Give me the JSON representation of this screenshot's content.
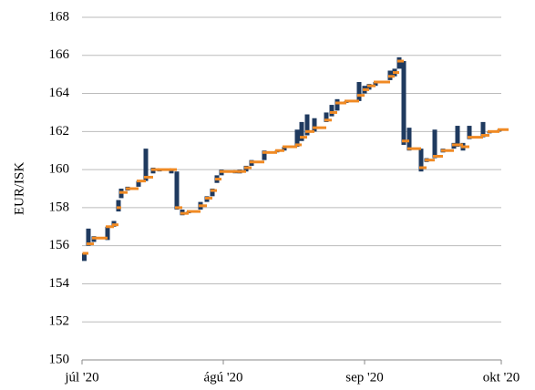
{
  "chart_data": {
    "type": "ohlc",
    "y_label": "EUR/ISK",
    "x": [
      0.5,
      1.4,
      2.6,
      5.6,
      7,
      8,
      8.6,
      10,
      12.4,
      14,
      15.6,
      17,
      19.6,
      20.8,
      22,
      23.4,
      26,
      27.4,
      28.6,
      29.6,
      30.6,
      33.6,
      34.6,
      36,
      37.2,
      40,
      42.8,
      44.4,
      47.2,
      48.2,
      49.4,
      51,
      53.6,
      54.8,
      56,
      58,
      60.8,
      62,
      63,
      64.4,
      67.6,
      68.6,
      69.6,
      70.6,
      71.8,
      74.4,
      75.6,
      77.4,
      79.2,
      81.6,
      82.4,
      83.6,
      85,
      88,
      89.4,
      91.6
    ],
    "high": [
      155.6,
      156.9,
      156.5,
      157.0,
      157.3,
      158.4,
      159.0,
      159.1,
      159.4,
      161.1,
      160.1,
      160.0,
      160.0,
      159.9,
      157.9,
      157.8,
      158.3,
      158.6,
      159.0,
      159.7,
      160.0,
      159.9,
      160.0,
      160.2,
      160.5,
      161.0,
      161.0,
      161.2,
      162.1,
      162.5,
      162.9,
      162.7,
      163.0,
      163.4,
      163.7,
      163.6,
      164.6,
      164.4,
      164.5,
      164.6,
      165.2,
      165.3,
      165.9,
      165.7,
      162.2,
      161.1,
      160.6,
      162.1,
      161.1,
      161.4,
      162.3,
      161.4,
      162.3,
      162.5,
      162.0,
      162.1
    ],
    "low": [
      155.2,
      156.0,
      156.2,
      156.3,
      157.0,
      157.8,
      158.5,
      158.9,
      159.1,
      159.4,
      159.8,
      160.0,
      159.8,
      157.9,
      157.6,
      157.8,
      157.9,
      158.3,
      158.6,
      159.3,
      159.7,
      159.9,
      159.8,
      159.9,
      160.2,
      160.5,
      161.0,
      161.0,
      161.2,
      161.5,
      161.8,
      162.0,
      162.5,
      162.8,
      163.1,
      163.6,
      163.6,
      164.0,
      164.2,
      164.4,
      164.7,
      164.9,
      165.3,
      161.3,
      161.0,
      159.9,
      160.4,
      160.6,
      160.9,
      161.1,
      161.2,
      161.0,
      161.6,
      161.7,
      162.0,
      162.1
    ],
    "close": [
      155.6,
      156.1,
      156.4,
      157.0,
      157.1,
      158.0,
      158.8,
      159.0,
      159.4,
      159.6,
      160.0,
      160.0,
      160.0,
      158.0,
      157.7,
      157.8,
      158.1,
      158.5,
      158.9,
      159.5,
      159.9,
      159.9,
      159.9,
      160.1,
      160.4,
      160.9,
      161.0,
      161.2,
      161.3,
      161.7,
      162.0,
      162.2,
      162.6,
      163.0,
      163.5,
      163.6,
      163.9,
      164.2,
      164.4,
      164.6,
      164.9,
      165.1,
      165.7,
      161.5,
      161.1,
      160.1,
      160.5,
      160.7,
      161.0,
      161.3,
      161.3,
      161.2,
      161.7,
      161.8,
      162.0,
      162.1
    ],
    "range_color": "#1f3a5f",
    "close_color": "#f08a24",
    "xlim": [
      0,
      92
    ],
    "xticks": [
      {
        "value": 0,
        "label": "júl '20"
      },
      {
        "value": 31,
        "label": "ágú '20"
      },
      {
        "value": 62,
        "label": "sep '20"
      },
      {
        "value": 92,
        "label": "okt '20"
      }
    ],
    "ylim": [
      150,
      168
    ],
    "yticks": [
      150,
      152,
      154,
      156,
      158,
      160,
      162,
      164,
      166,
      168
    ],
    "grid": true
  }
}
